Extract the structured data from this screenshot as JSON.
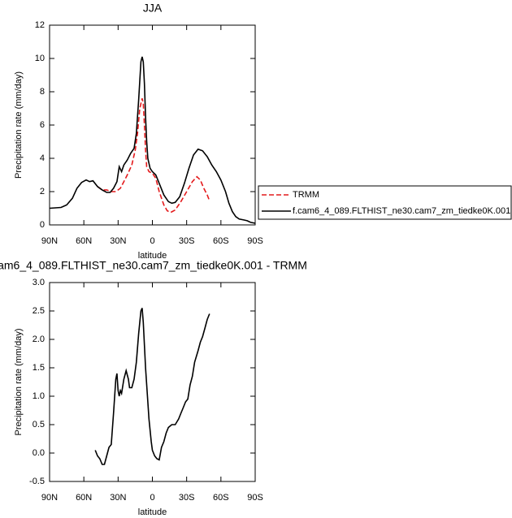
{
  "chart_data": [
    {
      "type": "line",
      "title": "JJA",
      "xlabel": "latitude",
      "ylabel": "Precipitation rate (mm/day)",
      "xlim": [
        90,
        -90
      ],
      "xticks": [
        {
          "value": 90,
          "label": "90N"
        },
        {
          "value": 60,
          "label": "60N"
        },
        {
          "value": 30,
          "label": "30N"
        },
        0,
        {
          "value": -30,
          "label": "30S"
        },
        {
          "value": -60,
          "label": "60S"
        },
        {
          "value": -90,
          "label": "90S"
        }
      ],
      "ylim": [
        0,
        12
      ],
      "yticks": [
        0,
        2,
        4,
        6,
        8,
        10,
        12
      ],
      "legend": "right",
      "series": [
        {
          "name": "TRMM",
          "color": "#e41a1c",
          "linestyle": "dashed",
          "x": [
            48,
            44,
            40,
            36,
            32,
            28,
            25,
            22,
            18,
            15,
            13,
            11,
            9,
            8,
            7,
            6,
            5,
            3,
            0,
            -3,
            -6,
            -10,
            -13,
            -16,
            -20,
            -25,
            -30,
            -35,
            -39,
            -42,
            -45,
            -48,
            -50
          ],
          "values": [
            2.3,
            2.1,
            2.1,
            2.0,
            2.0,
            2.2,
            2.6,
            3.0,
            3.6,
            4.5,
            5.5,
            7.0,
            7.6,
            7.3,
            6.0,
            4.5,
            3.5,
            3.2,
            3.1,
            2.8,
            2.0,
            1.2,
            0.85,
            0.75,
            0.9,
            1.4,
            2.0,
            2.6,
            2.9,
            2.7,
            2.2,
            1.8,
            1.45
          ]
        },
        {
          "name": "f.cam6_4_089.FLTHIST_ne30.cam7_zm_tiedke0K.001",
          "color": "#000000",
          "linestyle": "solid",
          "x": [
            90,
            80,
            75,
            70,
            66,
            62,
            58,
            55,
            52,
            48,
            44,
            40,
            37,
            34,
            31,
            29,
            27,
            25,
            22,
            19,
            16,
            14,
            12,
            10,
            9,
            8,
            7,
            6,
            5,
            4,
            2,
            0,
            -3,
            -6,
            -10,
            -14,
            -17,
            -20,
            -24,
            -28,
            -32,
            -36,
            -40,
            -44,
            -48,
            -52,
            -56,
            -60,
            -64,
            -67,
            -70,
            -73,
            -76,
            -80,
            -83,
            -86,
            -90
          ],
          "values": [
            1.0,
            1.05,
            1.2,
            1.6,
            2.2,
            2.55,
            2.7,
            2.6,
            2.65,
            2.3,
            2.1,
            1.95,
            1.95,
            2.2,
            2.6,
            3.5,
            3.2,
            3.6,
            3.9,
            4.3,
            4.6,
            5.5,
            7.5,
            9.8,
            10.1,
            9.8,
            8.5,
            6.5,
            5.0,
            4.0,
            3.4,
            3.2,
            3.0,
            2.5,
            1.8,
            1.4,
            1.3,
            1.35,
            1.7,
            2.5,
            3.4,
            4.2,
            4.55,
            4.45,
            4.1,
            3.6,
            3.2,
            2.7,
            2.0,
            1.3,
            0.8,
            0.5,
            0.35,
            0.3,
            0.25,
            0.15,
            0.1
          ]
        }
      ]
    },
    {
      "type": "line",
      "title": "am6_4_089.FLTHIST_ne30.cam7_zm_tiedke0K.001 - TRMM",
      "xlabel": "latitude",
      "ylabel": "Precipitation rate (mm/day)",
      "xlim": [
        90,
        -90
      ],
      "xticks": [
        {
          "value": 90,
          "label": "90N"
        },
        {
          "value": 60,
          "label": "60N"
        },
        {
          "value": 30,
          "label": "30N"
        },
        0,
        {
          "value": -30,
          "label": "30S"
        },
        {
          "value": -60,
          "label": "60S"
        },
        {
          "value": -90,
          "label": "90S"
        }
      ],
      "ylim": [
        -0.5,
        3.0
      ],
      "yticks": [
        -0.5,
        {
          "value": 0,
          "label": "0.0"
        },
        0.5,
        {
          "value": 1,
          "label": "1.0"
        },
        1.5,
        {
          "value": 2,
          "label": "2.0"
        },
        2.5,
        {
          "value": 3,
          "label": "3.0"
        }
      ],
      "series": [
        {
          "color": "#000000",
          "linestyle": "solid",
          "x": [
            50,
            48,
            46,
            44,
            42,
            40,
            38,
            36,
            34,
            32,
            31,
            30,
            29,
            28,
            27,
            25,
            23,
            21,
            20,
            18,
            16,
            14,
            12,
            10,
            9,
            8,
            7,
            6,
            5,
            3,
            1,
            0,
            -2,
            -4,
            -6,
            -8,
            -10,
            -12,
            -14,
            -17,
            -20,
            -23,
            -25,
            -27,
            -29,
            -31,
            -33,
            -35,
            -37,
            -40,
            -42,
            -44,
            -46,
            -48,
            -50
          ],
          "values": [
            0.05,
            -0.05,
            -0.1,
            -0.2,
            -0.2,
            -0.05,
            0.1,
            0.15,
            0.7,
            1.3,
            1.4,
            1.1,
            1.0,
            1.1,
            1.05,
            1.3,
            1.45,
            1.3,
            1.15,
            1.15,
            1.3,
            1.6,
            2.1,
            2.5,
            2.55,
            2.3,
            1.9,
            1.5,
            1.2,
            0.6,
            0.2,
            0.05,
            -0.05,
            -0.1,
            -0.12,
            0.1,
            0.2,
            0.35,
            0.45,
            0.5,
            0.5,
            0.6,
            0.7,
            0.8,
            0.9,
            0.95,
            1.2,
            1.35,
            1.6,
            1.8,
            1.95,
            2.05,
            2.2,
            2.35,
            2.45
          ]
        }
      ]
    }
  ]
}
